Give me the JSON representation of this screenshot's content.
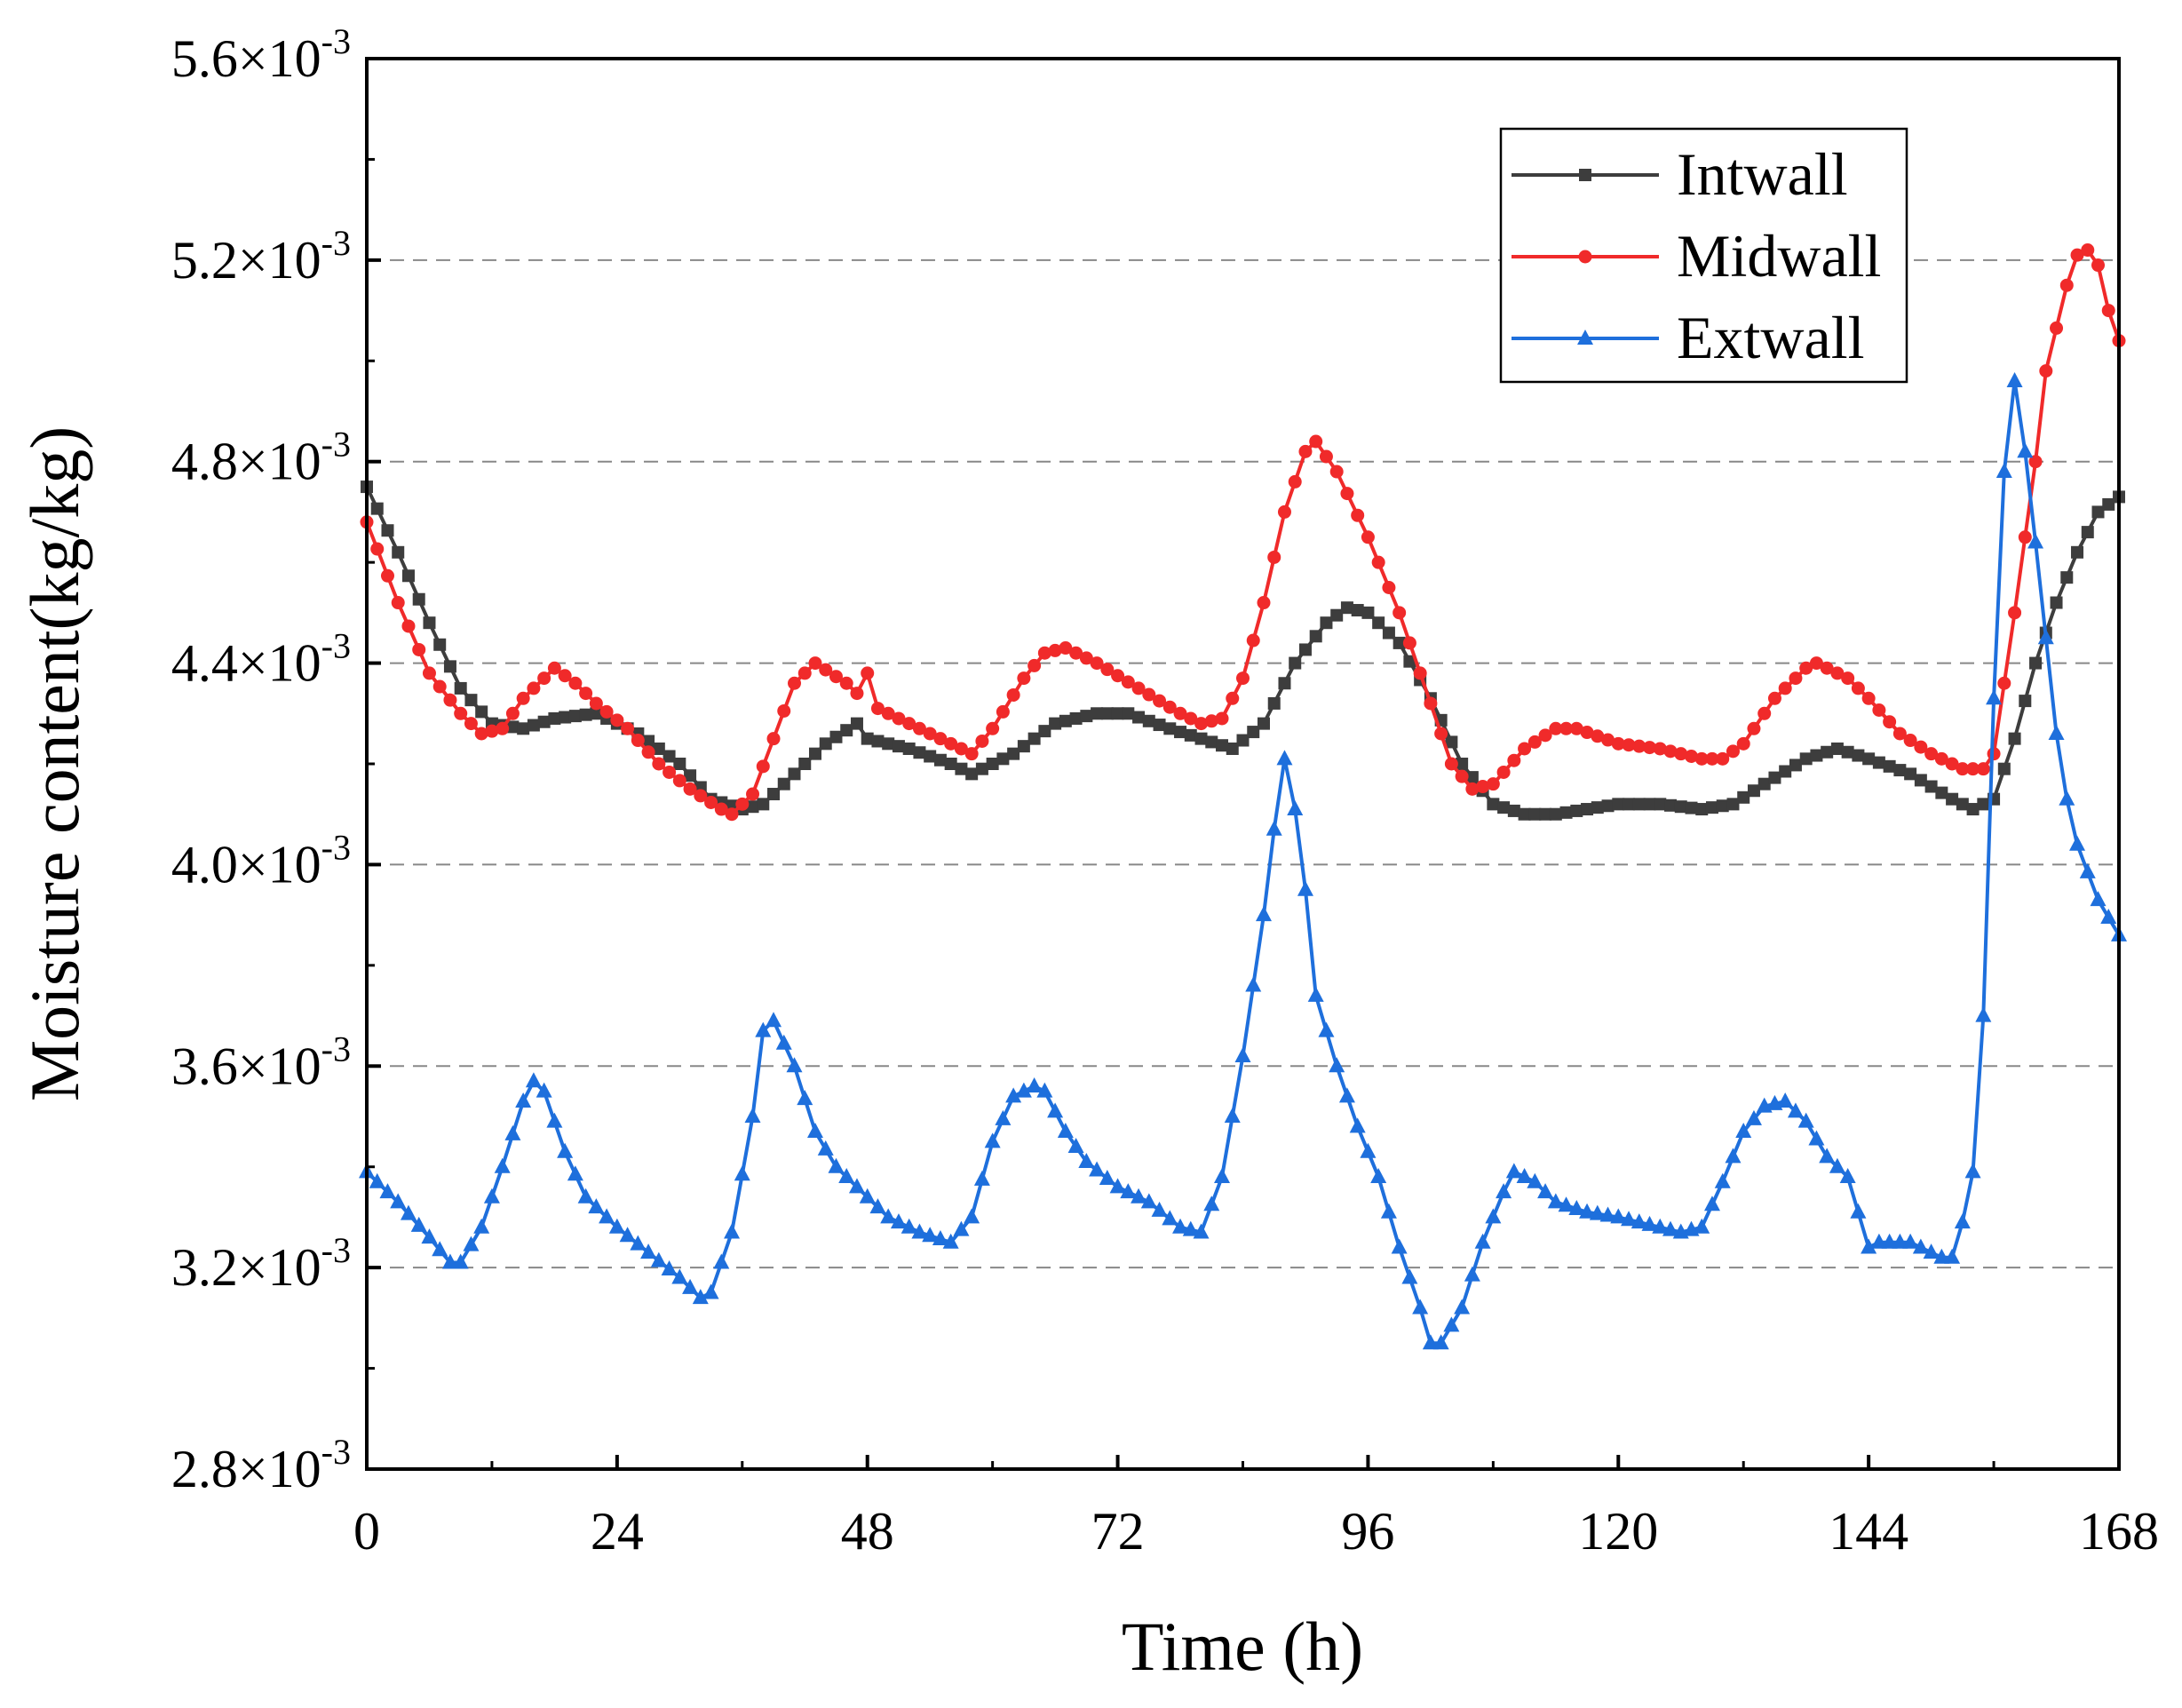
{
  "chart_data": {
    "type": "line",
    "title": "",
    "xlabel": "Time (h)",
    "ylabel": "Moisture content(kg/kg)",
    "xlim": [
      0,
      168
    ],
    "ylim": [
      2.8,
      5.6
    ],
    "y_unit_multiplier": "×10",
    "y_exponent": "-3",
    "xticks": [
      0,
      24,
      48,
      72,
      96,
      120,
      144,
      168
    ],
    "yticks": [
      "2.8",
      "3.2",
      "3.6",
      "4.0",
      "4.4",
      "4.8",
      "5.2",
      "5.6"
    ],
    "grid": "horizontal dashed at major y ticks",
    "legend_position": "top-right",
    "series": [
      {
        "name": "Intwall",
        "color": "#3d3d3d",
        "marker": "square",
        "points": [
          [
            0,
            4.75
          ],
          [
            3,
            4.62
          ],
          [
            6,
            4.48
          ],
          [
            9,
            4.35
          ],
          [
            12,
            4.28
          ],
          [
            15,
            4.27
          ],
          [
            18,
            4.29
          ],
          [
            22,
            4.3
          ],
          [
            26,
            4.26
          ],
          [
            30,
            4.2
          ],
          [
            33,
            4.13
          ],
          [
            36,
            4.11
          ],
          [
            38,
            4.12
          ],
          [
            41,
            4.18
          ],
          [
            44,
            4.24
          ],
          [
            47,
            4.28
          ],
          [
            48,
            4.25
          ],
          [
            52,
            4.23
          ],
          [
            56,
            4.2
          ],
          [
            58,
            4.18
          ],
          [
            62,
            4.22
          ],
          [
            66,
            4.28
          ],
          [
            70,
            4.3
          ],
          [
            73,
            4.3
          ],
          [
            77,
            4.27
          ],
          [
            80,
            4.25
          ],
          [
            83,
            4.23
          ],
          [
            86,
            4.28
          ],
          [
            89,
            4.4
          ],
          [
            92,
            4.48
          ],
          [
            94,
            4.51
          ],
          [
            96,
            4.5
          ],
          [
            99,
            4.44
          ],
          [
            102,
            4.33
          ],
          [
            105,
            4.2
          ],
          [
            108,
            4.12
          ],
          [
            111,
            4.1
          ],
          [
            114,
            4.1
          ],
          [
            117,
            4.11
          ],
          [
            120,
            4.12
          ],
          [
            124,
            4.12
          ],
          [
            128,
            4.11
          ],
          [
            131,
            4.12
          ],
          [
            134,
            4.16
          ],
          [
            138,
            4.21
          ],
          [
            141,
            4.23
          ],
          [
            144,
            4.21
          ],
          [
            148,
            4.18
          ],
          [
            152,
            4.13
          ],
          [
            154,
            4.11
          ],
          [
            156,
            4.13
          ],
          [
            158,
            4.25
          ],
          [
            160,
            4.4
          ],
          [
            162,
            4.52
          ],
          [
            164,
            4.62
          ],
          [
            166,
            4.7
          ],
          [
            168,
            4.73
          ]
        ]
      },
      {
        "name": "Midwall",
        "color": "#f02a2a",
        "marker": "circle",
        "points": [
          [
            0,
            4.68
          ],
          [
            3,
            4.52
          ],
          [
            6,
            4.38
          ],
          [
            9,
            4.3
          ],
          [
            11,
            4.26
          ],
          [
            13,
            4.27
          ],
          [
            15,
            4.33
          ],
          [
            18,
            4.39
          ],
          [
            20,
            4.36
          ],
          [
            22,
            4.32
          ],
          [
            25,
            4.27
          ],
          [
            28,
            4.2
          ],
          [
            31,
            4.15
          ],
          [
            34,
            4.11
          ],
          [
            35,
            4.1
          ],
          [
            37,
            4.14
          ],
          [
            39,
            4.25
          ],
          [
            41,
            4.36
          ],
          [
            43,
            4.4
          ],
          [
            46,
            4.36
          ],
          [
            47,
            4.34
          ],
          [
            48,
            4.38
          ],
          [
            49,
            4.31
          ],
          [
            52,
            4.28
          ],
          [
            56,
            4.24
          ],
          [
            58,
            4.22
          ],
          [
            60,
            4.27
          ],
          [
            63,
            4.37
          ],
          [
            65,
            4.42
          ],
          [
            67,
            4.43
          ],
          [
            70,
            4.4
          ],
          [
            74,
            4.35
          ],
          [
            78,
            4.3
          ],
          [
            80,
            4.28
          ],
          [
            82,
            4.29
          ],
          [
            84,
            4.37
          ],
          [
            86,
            4.52
          ],
          [
            88,
            4.7
          ],
          [
            90,
            4.82
          ],
          [
            91,
            4.84
          ],
          [
            93,
            4.78
          ],
          [
            96,
            4.65
          ],
          [
            99,
            4.5
          ],
          [
            102,
            4.32
          ],
          [
            104,
            4.2
          ],
          [
            106,
            4.15
          ],
          [
            108,
            4.16
          ],
          [
            111,
            4.23
          ],
          [
            114,
            4.27
          ],
          [
            116,
            4.27
          ],
          [
            120,
            4.24
          ],
          [
            124,
            4.23
          ],
          [
            128,
            4.21
          ],
          [
            130,
            4.21
          ],
          [
            132,
            4.24
          ],
          [
            135,
            4.33
          ],
          [
            138,
            4.39
          ],
          [
            139,
            4.4
          ],
          [
            142,
            4.37
          ],
          [
            144,
            4.33
          ],
          [
            147,
            4.26
          ],
          [
            150,
            4.22
          ],
          [
            153,
            4.19
          ],
          [
            155,
            4.19
          ],
          [
            156,
            4.22
          ],
          [
            158,
            4.5
          ],
          [
            160,
            4.8
          ],
          [
            161,
            4.98
          ],
          [
            163,
            5.15
          ],
          [
            164,
            5.21
          ],
          [
            165,
            5.22
          ],
          [
            166,
            5.19
          ],
          [
            167,
            5.1
          ],
          [
            168,
            5.04
          ]
        ]
      },
      {
        "name": "Extwall",
        "color": "#1e6fdc",
        "marker": "triangle",
        "points": [
          [
            0,
            3.39
          ],
          [
            3,
            3.33
          ],
          [
            6,
            3.26
          ],
          [
            8,
            3.21
          ],
          [
            9,
            3.21
          ],
          [
            11,
            3.28
          ],
          [
            13,
            3.4
          ],
          [
            15,
            3.53
          ],
          [
            16,
            3.57
          ],
          [
            17,
            3.55
          ],
          [
            19,
            3.43
          ],
          [
            21,
            3.34
          ],
          [
            24,
            3.28
          ],
          [
            27,
            3.23
          ],
          [
            30,
            3.18
          ],
          [
            32,
            3.14
          ],
          [
            33,
            3.15
          ],
          [
            35,
            3.27
          ],
          [
            37,
            3.5
          ],
          [
            38,
            3.67
          ],
          [
            39,
            3.69
          ],
          [
            41,
            3.6
          ],
          [
            43,
            3.47
          ],
          [
            45,
            3.4
          ],
          [
            47,
            3.36
          ],
          [
            50,
            3.3
          ],
          [
            53,
            3.27
          ],
          [
            56,
            3.25
          ],
          [
            58,
            3.3
          ],
          [
            60,
            3.45
          ],
          [
            62,
            3.54
          ],
          [
            64,
            3.56
          ],
          [
            65,
            3.55
          ],
          [
            67,
            3.47
          ],
          [
            69,
            3.41
          ],
          [
            72,
            3.36
          ],
          [
            75,
            3.33
          ],
          [
            78,
            3.28
          ],
          [
            80,
            3.27
          ],
          [
            82,
            3.38
          ],
          [
            84,
            3.62
          ],
          [
            86,
            3.9
          ],
          [
            87,
            4.07
          ],
          [
            88,
            4.21
          ],
          [
            89,
            4.11
          ],
          [
            90,
            3.95
          ],
          [
            91,
            3.74
          ],
          [
            93,
            3.6
          ],
          [
            95,
            3.48
          ],
          [
            97,
            3.38
          ],
          [
            99,
            3.24
          ],
          [
            101,
            3.12
          ],
          [
            102,
            3.05
          ],
          [
            103,
            3.05
          ],
          [
            105,
            3.12
          ],
          [
            107,
            3.25
          ],
          [
            109,
            3.35
          ],
          [
            110,
            3.39
          ],
          [
            112,
            3.37
          ],
          [
            114,
            3.33
          ],
          [
            117,
            3.31
          ],
          [
            120,
            3.3
          ],
          [
            124,
            3.28
          ],
          [
            126,
            3.27
          ],
          [
            128,
            3.28
          ],
          [
            130,
            3.37
          ],
          [
            132,
            3.47
          ],
          [
            134,
            3.52
          ],
          [
            136,
            3.53
          ],
          [
            138,
            3.49
          ],
          [
            140,
            3.42
          ],
          [
            142,
            3.38
          ],
          [
            144,
            3.24
          ],
          [
            145,
            3.25
          ],
          [
            148,
            3.25
          ],
          [
            151,
            3.22
          ],
          [
            152,
            3.22
          ],
          [
            153,
            3.29
          ],
          [
            154,
            3.39
          ],
          [
            155,
            3.7
          ],
          [
            156,
            4.33
          ],
          [
            157,
            4.78
          ],
          [
            158,
            4.96
          ],
          [
            159,
            4.82
          ],
          [
            160,
            4.64
          ],
          [
            161,
            4.45
          ],
          [
            162,
            4.26
          ],
          [
            163,
            4.13
          ],
          [
            164,
            4.04
          ],
          [
            166,
            3.93
          ],
          [
            168,
            3.86
          ]
        ]
      }
    ]
  }
}
